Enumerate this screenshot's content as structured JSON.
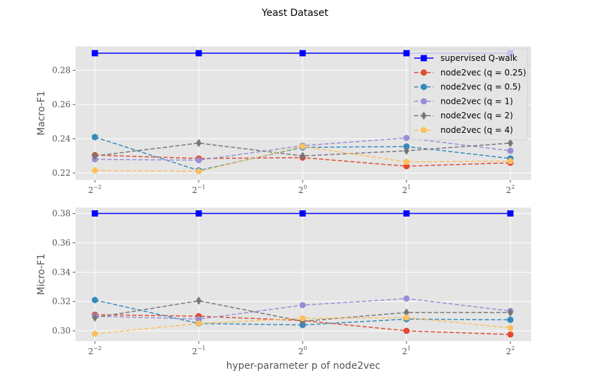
{
  "figure": {
    "title": "Yeast Dataset"
  },
  "chart_data": [
    {
      "type": "line",
      "title": "",
      "xlabel": "",
      "ylabel": "Macro-F1",
      "x": [
        -2,
        -1,
        0,
        1,
        2
      ],
      "x_tick_labels": [
        {
          "base": "2",
          "exp": "−2"
        },
        {
          "base": "2",
          "exp": "−1"
        },
        {
          "base": "2",
          "exp": "0"
        },
        {
          "base": "2",
          "exp": "1"
        },
        {
          "base": "2",
          "exp": "2"
        }
      ],
      "ylim": [
        0.216,
        0.294
      ],
      "y_ticks": [
        0.22,
        0.24,
        0.26,
        0.28
      ],
      "y_tick_labels": [
        "0.22",
        "0.24",
        "0.26",
        "0.28"
      ],
      "grid": true,
      "legend": {
        "placement": "top-right",
        "entries": [
          {
            "label": "supervised Q-walk",
            "series": 0
          },
          {
            "label": "node2vec (q = 0.25)",
            "series": 1
          },
          {
            "label": "node2vec (q = 0.5)",
            "series": 2
          },
          {
            "label": "node2vec (q = 1)",
            "series": 3
          },
          {
            "label": "node2vec (q = 2)",
            "series": 4
          },
          {
            "label": "node2vec (q = 4)",
            "series": 5
          }
        ]
      },
      "series": [
        {
          "name": "supervised Q-walk",
          "values": [
            0.29,
            0.29,
            0.29,
            0.29,
            0.29
          ],
          "color": "#0000ff",
          "marker": "square",
          "style": "solid"
        },
        {
          "name": "node2vec (q = 0.25)",
          "values": [
            0.2305,
            0.2285,
            0.229,
            0.224,
            0.226
          ],
          "color": "#e24a33",
          "marker": "circle",
          "style": "dashed"
        },
        {
          "name": "node2vec (q = 0.5)",
          "values": [
            0.241,
            0.2215,
            0.235,
            0.2355,
            0.2285
          ],
          "color": "#348abd",
          "marker": "hexagon",
          "style": "dashed"
        },
        {
          "name": "node2vec (q = 1)",
          "values": [
            0.228,
            0.2275,
            0.236,
            0.2405,
            0.233
          ],
          "color": "#988ed5",
          "marker": "circle",
          "style": "dashed"
        },
        {
          "name": "node2vec (q = 2)",
          "values": [
            0.23,
            0.2375,
            0.23,
            0.233,
            0.2375
          ],
          "color": "#777777",
          "marker": "diamond",
          "style": "dashed"
        },
        {
          "name": "node2vec (q = 4)",
          "values": [
            0.2215,
            0.221,
            0.2355,
            0.2265,
            0.227
          ],
          "color": "#fbc15e",
          "marker": "pentagon",
          "style": "dashed"
        }
      ]
    },
    {
      "type": "line",
      "title": "",
      "xlabel": "hyper-parameter p of node2vec",
      "ylabel": "Micro-F1",
      "x": [
        -2,
        -1,
        0,
        1,
        2
      ],
      "x_tick_labels": [
        {
          "base": "2",
          "exp": "−2"
        },
        {
          "base": "2",
          "exp": "−1"
        },
        {
          "base": "2",
          "exp": "0"
        },
        {
          "base": "2",
          "exp": "1"
        },
        {
          "base": "2",
          "exp": "2"
        }
      ],
      "ylim": [
        0.293,
        0.384
      ],
      "y_ticks": [
        0.3,
        0.32,
        0.34,
        0.36,
        0.38
      ],
      "y_tick_labels": [
        "0.30",
        "0.32",
        "0.34",
        "0.36",
        "0.38"
      ],
      "grid": true,
      "series": [
        {
          "name": "supervised Q-walk",
          "values": [
            0.38,
            0.38,
            0.38,
            0.38,
            0.38
          ],
          "color": "#0000ff",
          "marker": "square",
          "style": "solid"
        },
        {
          "name": "node2vec (q = 0.25)",
          "values": [
            0.311,
            0.31,
            0.307,
            0.3,
            0.2975
          ],
          "color": "#e24a33",
          "marker": "circle",
          "style": "dashed"
        },
        {
          "name": "node2vec (q = 0.5)",
          "values": [
            0.321,
            0.305,
            0.304,
            0.308,
            0.3075
          ],
          "color": "#348abd",
          "marker": "hexagon",
          "style": "dashed"
        },
        {
          "name": "node2vec (q = 1)",
          "values": [
            0.31,
            0.308,
            0.3175,
            0.322,
            0.3135
          ],
          "color": "#988ed5",
          "marker": "circle",
          "style": "dashed"
        },
        {
          "name": "node2vec (q = 2)",
          "values": [
            0.309,
            0.3205,
            0.3065,
            0.3125,
            0.3125
          ],
          "color": "#777777",
          "marker": "diamond",
          "style": "dashed"
        },
        {
          "name": "node2vec (q = 4)",
          "values": [
            0.298,
            0.305,
            0.3085,
            0.309,
            0.302
          ],
          "color": "#fbc15e",
          "marker": "pentagon",
          "style": "dashed"
        }
      ]
    }
  ]
}
